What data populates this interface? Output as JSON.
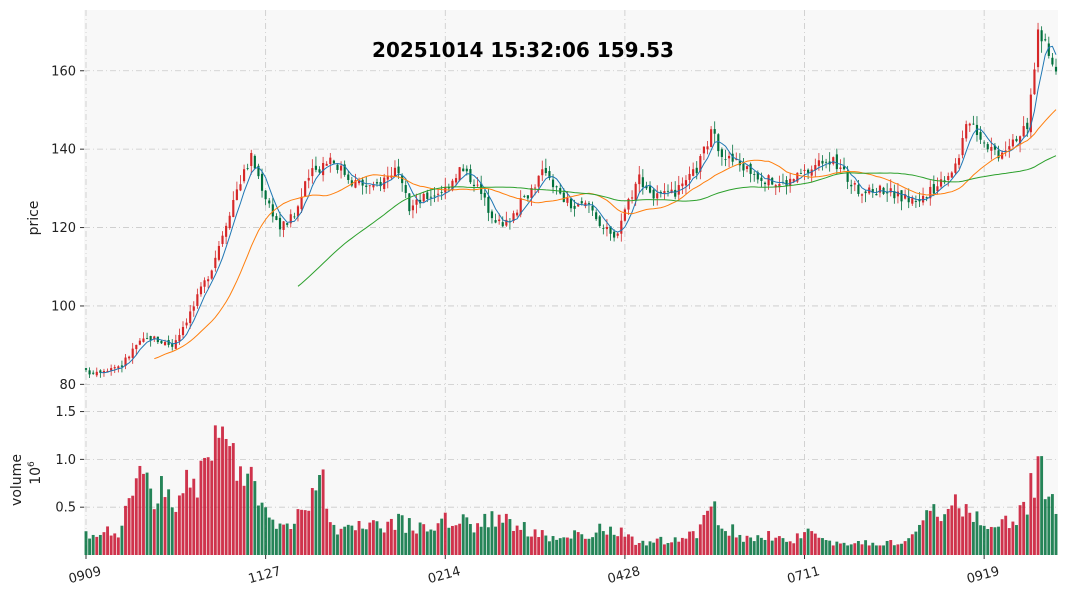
{
  "chart_data": {
    "type": "candlestick-with-volume",
    "title": "20251014 15:32:06   159.53",
    "price_panel": {
      "ylabel": "price",
      "ylim": [
        75.5,
        175.5
      ],
      "yticks": [
        80,
        100,
        120,
        140,
        160
      ],
      "moving_averages": [
        {
          "window": 5,
          "color": "#1f77b4"
        },
        {
          "window": 20,
          "color": "#ff7f0e"
        },
        {
          "window": 60,
          "color": "#2ca02c"
        }
      ],
      "up_color": "#d62728",
      "down_color": "#00703c"
    },
    "volume_panel": {
      "ylabel": "volume",
      "unit_label": "10",
      "unit_exponent": "6",
      "ylim": [
        0.0,
        1.6
      ],
      "yticks": [
        0.5,
        1.0,
        1.5
      ],
      "ytick_labels": [
        "0.5",
        "1.0",
        "1.5"
      ]
    },
    "xaxis": {
      "tick_labels": [
        "0909",
        "1127",
        "0214",
        "0428",
        "0711",
        "0919"
      ],
      "tick_positions": [
        0,
        50,
        100,
        150,
        200,
        250
      ]
    },
    "grid": true,
    "close_anchors": [
      [
        0,
        83.0
      ],
      [
        10,
        85.0
      ],
      [
        14,
        90.0
      ],
      [
        18,
        92.0
      ],
      [
        24,
        90.0
      ],
      [
        30,
        100.0
      ],
      [
        35,
        110.0
      ],
      [
        42,
        130.0
      ],
      [
        46,
        138.0
      ],
      [
        50,
        128.0
      ],
      [
        54,
        120.0
      ],
      [
        58,
        123.0
      ],
      [
        62,
        133.0
      ],
      [
        68,
        138.0
      ],
      [
        74,
        132.0
      ],
      [
        80,
        130.0
      ],
      [
        86,
        135.0
      ],
      [
        90,
        125.0
      ],
      [
        95,
        128.0
      ],
      [
        100,
        130.0
      ],
      [
        104,
        135.0
      ],
      [
        108,
        132.0
      ],
      [
        112,
        125.0
      ],
      [
        116,
        120.0
      ],
      [
        120,
        125.0
      ],
      [
        124,
        130.0
      ],
      [
        128,
        135.0
      ],
      [
        132,
        128.0
      ],
      [
        136,
        125.0
      ],
      [
        140,
        126.0
      ],
      [
        144,
        120.0
      ],
      [
        147,
        117.0
      ],
      [
        150,
        125.0
      ],
      [
        154,
        133.0
      ],
      [
        158,
        128.0
      ],
      [
        162,
        128.0
      ],
      [
        166,
        130.0
      ],
      [
        170,
        135.0
      ],
      [
        174,
        144.0
      ],
      [
        178,
        138.0
      ],
      [
        182,
        136.0
      ],
      [
        186,
        134.0
      ],
      [
        190,
        132.0
      ],
      [
        194,
        131.0
      ],
      [
        198,
        133.0
      ],
      [
        202,
        135.0
      ],
      [
        206,
        138.0
      ],
      [
        210,
        135.0
      ],
      [
        214,
        130.0
      ],
      [
        218,
        129.0
      ],
      [
        222,
        130.0
      ],
      [
        226,
        128.0
      ],
      [
        230,
        127.0
      ],
      [
        234,
        128.0
      ],
      [
        238,
        132.0
      ],
      [
        242,
        136.0
      ],
      [
        246,
        148.0
      ],
      [
        250,
        142.0
      ],
      [
        254,
        139.0
      ],
      [
        258,
        143.0
      ],
      [
        262,
        145.0
      ],
      [
        265,
        170.0
      ],
      [
        268,
        164.0
      ],
      [
        270,
        159.53
      ]
    ],
    "volume_anchors": [
      [
        0,
        0.2
      ],
      [
        10,
        0.25
      ],
      [
        14,
        0.85
      ],
      [
        18,
        0.7
      ],
      [
        24,
        0.6
      ],
      [
        30,
        0.8
      ],
      [
        35,
        1.0
      ],
      [
        40,
        1.25
      ],
      [
        42,
        0.85
      ],
      [
        46,
        0.8
      ],
      [
        50,
        0.4
      ],
      [
        54,
        0.35
      ],
      [
        58,
        0.4
      ],
      [
        62,
        0.6
      ],
      [
        66,
        0.7
      ],
      [
        70,
        0.25
      ],
      [
        80,
        0.3
      ],
      [
        86,
        0.35
      ],
      [
        90,
        0.3
      ],
      [
        95,
        0.3
      ],
      [
        100,
        0.35
      ],
      [
        104,
        0.45
      ],
      [
        108,
        0.3
      ],
      [
        112,
        0.35
      ],
      [
        116,
        0.45
      ],
      [
        120,
        0.3
      ],
      [
        124,
        0.25
      ],
      [
        128,
        0.2
      ],
      [
        132,
        0.15
      ],
      [
        136,
        0.2
      ],
      [
        140,
        0.15
      ],
      [
        144,
        0.3
      ],
      [
        148,
        0.25
      ],
      [
        152,
        0.15
      ],
      [
        156,
        0.12
      ],
      [
        160,
        0.15
      ],
      [
        170,
        0.2
      ],
      [
        174,
        0.55
      ],
      [
        178,
        0.3
      ],
      [
        182,
        0.2
      ],
      [
        186,
        0.15
      ],
      [
        190,
        0.2
      ],
      [
        196,
        0.15
      ],
      [
        200,
        0.25
      ],
      [
        204,
        0.15
      ],
      [
        210,
        0.12
      ],
      [
        220,
        0.12
      ],
      [
        228,
        0.15
      ],
      [
        232,
        0.3
      ],
      [
        238,
        0.5
      ],
      [
        242,
        0.55
      ],
      [
        246,
        0.5
      ],
      [
        250,
        0.3
      ],
      [
        254,
        0.3
      ],
      [
        258,
        0.35
      ],
      [
        262,
        0.6
      ],
      [
        265,
        0.9
      ],
      [
        268,
        0.65
      ],
      [
        270,
        0.35
      ]
    ]
  }
}
